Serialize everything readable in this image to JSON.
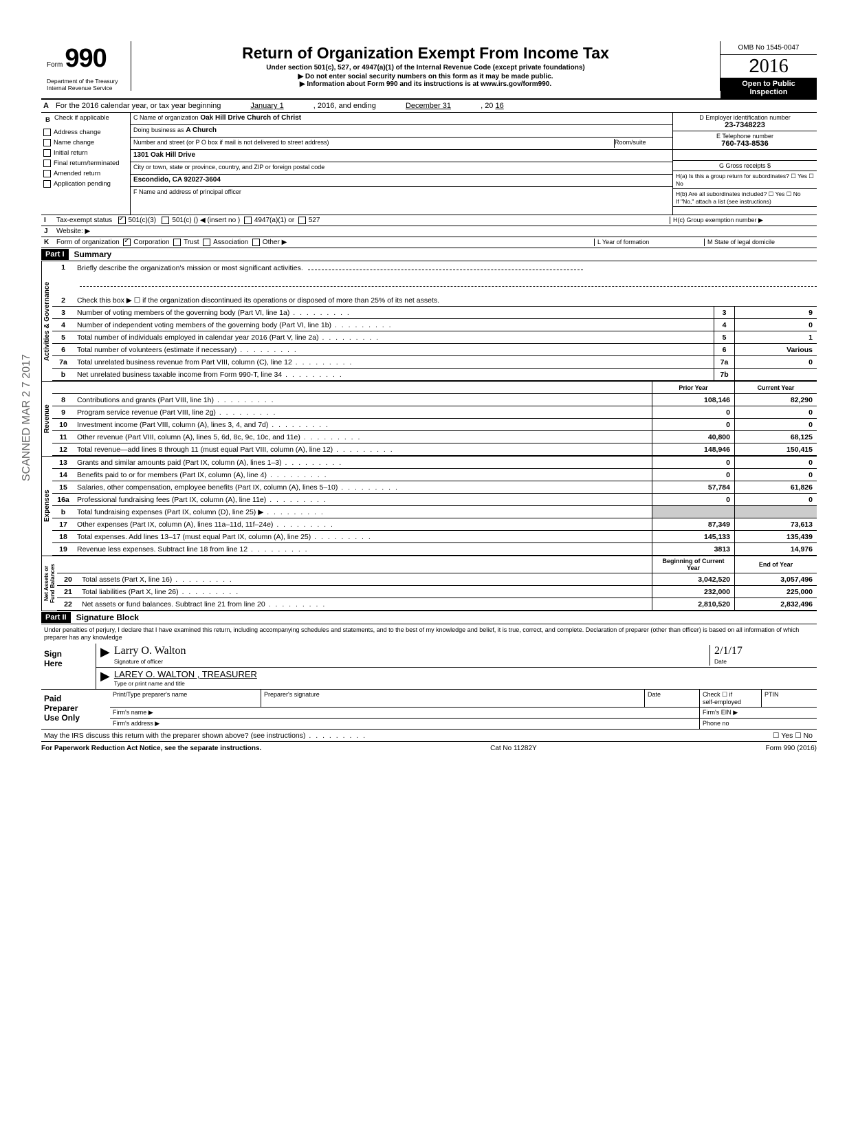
{
  "side_stamp": "SCANNED MAR 2 7 2017",
  "header": {
    "form_word": "Form",
    "form_num": "990",
    "dept": "Department of the Treasury\nInternal Revenue Service",
    "title": "Return of Organization Exempt From Income Tax",
    "sub1": "Under section 501(c), 527, or 4947(a)(1) of the Internal Revenue Code (except private foundations)",
    "sub2": "▶ Do not enter social security numbers on this form as it may be made public.",
    "sub3": "▶ Information about Form 990 and its instructions is at www.irs.gov/form990.",
    "omb": "OMB No 1545-0047",
    "year": "2016",
    "open": "Open to Public\nInspection"
  },
  "row_a": {
    "label": "A",
    "text": "For the 2016 calendar year, or tax year beginning",
    "begin": "January 1",
    "mid": ", 2016, and ending",
    "end": "December 31",
    "suffix": ", 20",
    "year": "16"
  },
  "col_b": {
    "label": "B",
    "header": "Check if applicable",
    "items": [
      "Address change",
      "Name change",
      "Initial return",
      "Final return/terminated",
      "Amended return",
      "Application pending"
    ]
  },
  "col_c": {
    "c_label": "C Name of organization",
    "c_val": "Oak Hill Drive Church of Christ",
    "dba_label": "Doing business as",
    "dba_val": "A Church",
    "street_label": "Number and street (or P O box if mail is not delivered to street address)",
    "room_label": "Room/suite",
    "street_val": "1301 Oak Hill Drive",
    "city_label": "City or town, state or province, country, and ZIP or foreign postal code",
    "city_val": "Escondido, CA 92027-3604",
    "f_label": "F Name and address of principal officer"
  },
  "col_d": {
    "d_label": "D Employer identification number",
    "d_val": "23-7348223",
    "e_label": "E Telephone number",
    "e_val": "760-743-8536",
    "g_label": "G Gross receipts $",
    "ha": "H(a) Is this a group return for subordinates?",
    "hb": "H(b) Are all subordinates included?",
    "hnote": "If \"No,\" attach a list (see instructions)",
    "hc": "H(c) Group exemption number ▶"
  },
  "row_i": {
    "label": "I",
    "text": "Tax-exempt status",
    "opts": [
      "501(c)(3)",
      "501(c) (",
      "4947(a)(1) or",
      "527"
    ],
    "insert": ") ◀ (insert no )"
  },
  "row_j": {
    "label": "J",
    "text": "Website: ▶"
  },
  "row_k": {
    "label": "K",
    "text": "Form of organization",
    "opts": [
      "Corporation",
      "Trust",
      "Association",
      "Other ▶"
    ],
    "l_label": "L Year of formation",
    "m_label": "M State of legal domicile"
  },
  "part1": {
    "header": "Part I",
    "title": "Summary"
  },
  "governance": {
    "label": "Activities & Governance",
    "line1": "Briefly describe the organization's mission or most significant activities.",
    "line2": "Check this box ▶ ☐ if the organization discontinued its operations or disposed of more than 25% of its net assets.",
    "lines": [
      {
        "n": "3",
        "t": "Number of voting members of the governing body (Part VI, line 1a)",
        "b": "3",
        "v": "9"
      },
      {
        "n": "4",
        "t": "Number of independent voting members of the governing body (Part VI, line 1b)",
        "b": "4",
        "v": "0"
      },
      {
        "n": "5",
        "t": "Total number of individuals employed in calendar year 2016 (Part V, line 2a)",
        "b": "5",
        "v": "1"
      },
      {
        "n": "6",
        "t": "Total number of volunteers (estimate if necessary)",
        "b": "6",
        "v": "Various"
      },
      {
        "n": "7a",
        "t": "Total unrelated business revenue from Part VIII, column (C), line 12",
        "b": "7a",
        "v": "0"
      },
      {
        "n": "b",
        "t": "Net unrelated business taxable income from Form 990-T, line 34",
        "b": "7b",
        "v": ""
      }
    ]
  },
  "revenue": {
    "label": "Revenue",
    "header_prior": "Prior Year",
    "header_current": "Current Year",
    "lines": [
      {
        "n": "8",
        "t": "Contributions and grants (Part VIII, line 1h)",
        "p": "108,146",
        "c": "82,290"
      },
      {
        "n": "9",
        "t": "Program service revenue (Part VIII, line 2g)",
        "p": "0",
        "c": "0"
      },
      {
        "n": "10",
        "t": "Investment income (Part VIII, column (A), lines 3, 4, and 7d)",
        "p": "0",
        "c": "0"
      },
      {
        "n": "11",
        "t": "Other revenue (Part VIII, column (A), lines 5, 6d, 8c, 9c, 10c, and 11e)",
        "p": "40,800",
        "c": "68,125"
      },
      {
        "n": "12",
        "t": "Total revenue—add lines 8 through 11 (must equal Part VIII, column (A), line 12)",
        "p": "148,946",
        "c": "150,415"
      }
    ]
  },
  "expenses": {
    "label": "Expenses",
    "lines": [
      {
        "n": "13",
        "t": "Grants and similar amounts paid (Part IX, column (A), lines 1–3)",
        "p": "0",
        "c": "0"
      },
      {
        "n": "14",
        "t": "Benefits paid to or for members (Part IX, column (A), line 4)",
        "p": "0",
        "c": "0"
      },
      {
        "n": "15",
        "t": "Salaries, other compensation, employee benefits (Part IX, column (A), lines 5–10)",
        "p": "57,784",
        "c": "61,826"
      },
      {
        "n": "16a",
        "t": "Professional fundraising fees (Part IX, column (A), line 11e)",
        "p": "0",
        "c": "0"
      },
      {
        "n": "b",
        "t": "Total fundraising expenses (Part IX, column (D), line 25) ▶",
        "p": "",
        "c": ""
      },
      {
        "n": "17",
        "t": "Other expenses (Part IX, column (A), lines 11a–11d, 11f–24e)",
        "p": "87,349",
        "c": "73,613"
      },
      {
        "n": "18",
        "t": "Total expenses. Add lines 13–17 (must equal Part IX, column (A), line 25)",
        "p": "145,133",
        "c": "135,439"
      },
      {
        "n": "19",
        "t": "Revenue less expenses. Subtract line 18 from line 12",
        "p": "3813",
        "c": "14,976"
      }
    ]
  },
  "netassets": {
    "label": "Net Assets or\nFund Balances",
    "header_begin": "Beginning of Current Year",
    "header_end": "End of Year",
    "lines": [
      {
        "n": "20",
        "t": "Total assets (Part X, line 16)",
        "p": "3,042,520",
        "c": "3,057,496"
      },
      {
        "n": "21",
        "t": "Total liabilities (Part X, line 26)",
        "p": "232,000",
        "c": "225,000"
      },
      {
        "n": "22",
        "t": "Net assets or fund balances. Subtract line 21 from line 20",
        "p": "2,810,520",
        "c": "2,832,496"
      }
    ]
  },
  "part2": {
    "header": "Part II",
    "title": "Signature Block"
  },
  "sig": {
    "perjury": "Under penalties of perjury, I declare that I have examined this return, including accompanying schedules and statements, and to the best of my knowledge and belief, it is true, correct, and complete. Declaration of preparer (other than officer) is based on all information of which preparer has any knowledge",
    "sign_here": "Sign\nHere",
    "sig_label": "Signature of officer",
    "date_label": "Date",
    "date_val": "2/1/17",
    "name_label": "Type or print name and title",
    "name_val": "LAREY O. WALTON , TREASURER",
    "sig_script": "Larry O. Walton"
  },
  "preparer": {
    "left": "Paid\nPreparer\nUse Only",
    "cells": {
      "print_name": "Print/Type preparer's name",
      "prep_sig": "Preparer's signature",
      "date": "Date",
      "check": "Check ☐ if\nself-employed",
      "ptin": "PTIN",
      "firm_name": "Firm's name ▶",
      "firm_ein": "Firm's EIN ▶",
      "firm_addr": "Firm's address ▶",
      "phone": "Phone no"
    }
  },
  "discuss": "May the IRS discuss this return with the preparer shown above? (see instructions)",
  "footer": {
    "left": "For Paperwork Reduction Act Notice, see the separate instructions.",
    "mid": "Cat No 11282Y",
    "right": "Form 990 (2016)"
  }
}
